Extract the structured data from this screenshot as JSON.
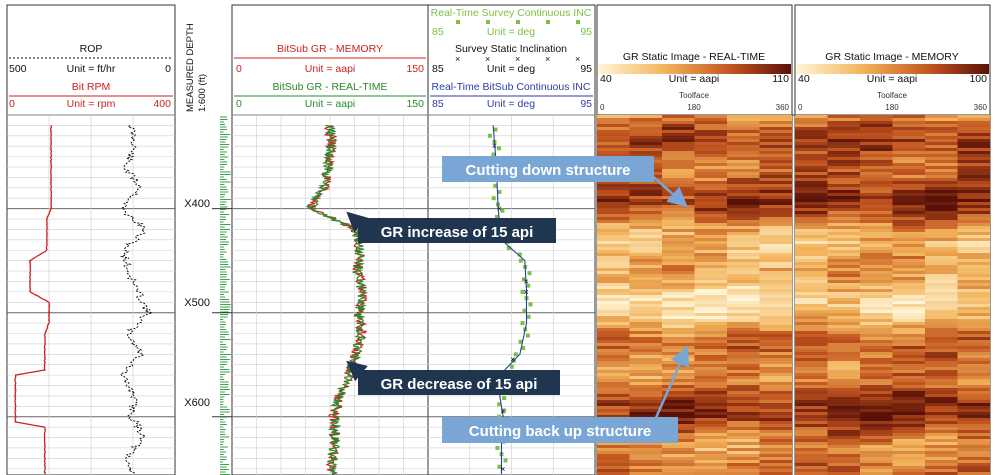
{
  "header": {
    "track1": {
      "curve1": {
        "name": "ROP",
        "left": "500",
        "unit": "Unit = ft/hr",
        "right": "0",
        "color": "#111111"
      },
      "curve2": {
        "name": "Bit RPM",
        "left": "0",
        "unit": "Unit = rpm",
        "right": "400",
        "color": "#cc2222"
      }
    },
    "depth": {
      "label": "MEASURED DEPTH",
      "scale": "1:600 (ft)"
    },
    "track2": {
      "curve1": {
        "name": "BitSub GR - MEMORY",
        "left": "0",
        "unit": "Unit = aapi",
        "right": "150",
        "color": "#cc2222"
      },
      "curve2": {
        "name": "BitSub GR - REAL-TIME",
        "left": "0",
        "unit": "Unit = aapi",
        "right": "150",
        "color": "#2a8a2a"
      }
    },
    "track3": {
      "curve1": {
        "name": "Real-Time Survey Continuous INC",
        "left": "85",
        "unit": "Unit = deg",
        "right": "95",
        "color": "#7cc242"
      },
      "curve2": {
        "name": "Survey Static Inclination",
        "left": "85",
        "unit": "Unit = deg",
        "right": "95",
        "color": "#111111"
      },
      "curve3": {
        "name": "Real-Time BitSub Continuous INC",
        "left": "85",
        "unit": "Unit = deg",
        "right": "95",
        "color": "#2b3ea8"
      }
    },
    "image1": {
      "title": "GR Static Image - REAL-TIME",
      "left": "40",
      "unit": "Unit = aapi",
      "right": "110",
      "tf_label": "Toolface",
      "tf0": "0",
      "tf1": "180",
      "tf2": "360"
    },
    "image2": {
      "title": "GR Static Image - MEMORY",
      "left": "40",
      "unit": "Unit = aapi",
      "right": "100",
      "tf_label": "Toolface",
      "tf0": "0",
      "tf1": "180",
      "tf2": "360"
    }
  },
  "depth_labels": [
    "X400",
    "X500",
    "X600"
  ],
  "callouts": {
    "gr_increase": "GR increase of 15 api",
    "gr_decrease": "GR decrease of 15 api",
    "cut_down": "Cutting down structure",
    "cut_up": "Cutting back up structure"
  },
  "colors": {
    "dark_callout": "#1f3550",
    "light_callout": "#7aa6d6",
    "grid": "#bdbdbd"
  },
  "chart_data": {
    "type": "line",
    "depth_range": [
      310,
      656
    ],
    "depth_ticks": [
      400,
      500,
      600
    ],
    "series": [
      {
        "name": "ROP",
        "unit": "ft/hr",
        "range": [
          500,
          0
        ],
        "depth": [
          320,
          340,
          360,
          380,
          400,
          420,
          440,
          460,
          480,
          500,
          520,
          540,
          560,
          580,
          600,
          620,
          640,
          655
        ],
        "values": [
          130,
          120,
          150,
          100,
          160,
          90,
          150,
          140,
          110,
          80,
          140,
          100,
          160,
          120,
          130,
          90,
          150,
          120
        ]
      },
      {
        "name": "Bit RPM",
        "unit": "rpm",
        "range": [
          0,
          400
        ],
        "depth": [
          320,
          400,
          410,
          440,
          450,
          480,
          490,
          510,
          520,
          555,
          560,
          605,
          610,
          655
        ],
        "values": [
          105,
          105,
          95,
          95,
          55,
          55,
          100,
          100,
          90,
          90,
          20,
          20,
          90,
          90
        ]
      },
      {
        "name": "BitSub GR - MEMORY",
        "unit": "aapi",
        "range": [
          0,
          150
        ],
        "depth": [
          320,
          340,
          360,
          380,
          400,
          420,
          440,
          460,
          480,
          500,
          520,
          540,
          560,
          580,
          600,
          620,
          640,
          655
        ],
        "values": [
          75,
          76,
          74,
          70,
          60,
          95,
          98,
          96,
          100,
          97,
          99,
          95,
          90,
          82,
          78,
          79,
          77,
          76
        ]
      },
      {
        "name": "BitSub GR - REAL-TIME",
        "unit": "aapi",
        "range": [
          0,
          150
        ],
        "depth": [
          320,
          340,
          360,
          380,
          400,
          420,
          440,
          460,
          480,
          500,
          520,
          540,
          560,
          580,
          600,
          620,
          640,
          655
        ],
        "values": [
          75,
          76,
          74,
          70,
          60,
          95,
          98,
          96,
          100,
          97,
          99,
          95,
          90,
          82,
          78,
          79,
          77,
          76
        ]
      },
      {
        "name": "Real-Time BitSub Continuous INC",
        "unit": "deg",
        "range": [
          85,
          95
        ],
        "depth": [
          320,
          360,
          400,
          430,
          450,
          480,
          510,
          540,
          555,
          580,
          600,
          620,
          655
        ],
        "values": [
          88.9,
          89.1,
          89.2,
          89.4,
          90.8,
          90.9,
          90.9,
          90.5,
          89.6,
          89.3,
          89.5,
          89.4,
          89.4
        ]
      },
      {
        "name": "Survey Static Inclination",
        "unit": "deg",
        "range": [
          85,
          95
        ],
        "depth": [
          340,
          400,
          470,
          480,
          545,
          595,
          650
        ],
        "values": [
          89.0,
          89.3,
          90.9,
          90.9,
          90.1,
          89.5,
          89.5
        ]
      }
    ]
  }
}
